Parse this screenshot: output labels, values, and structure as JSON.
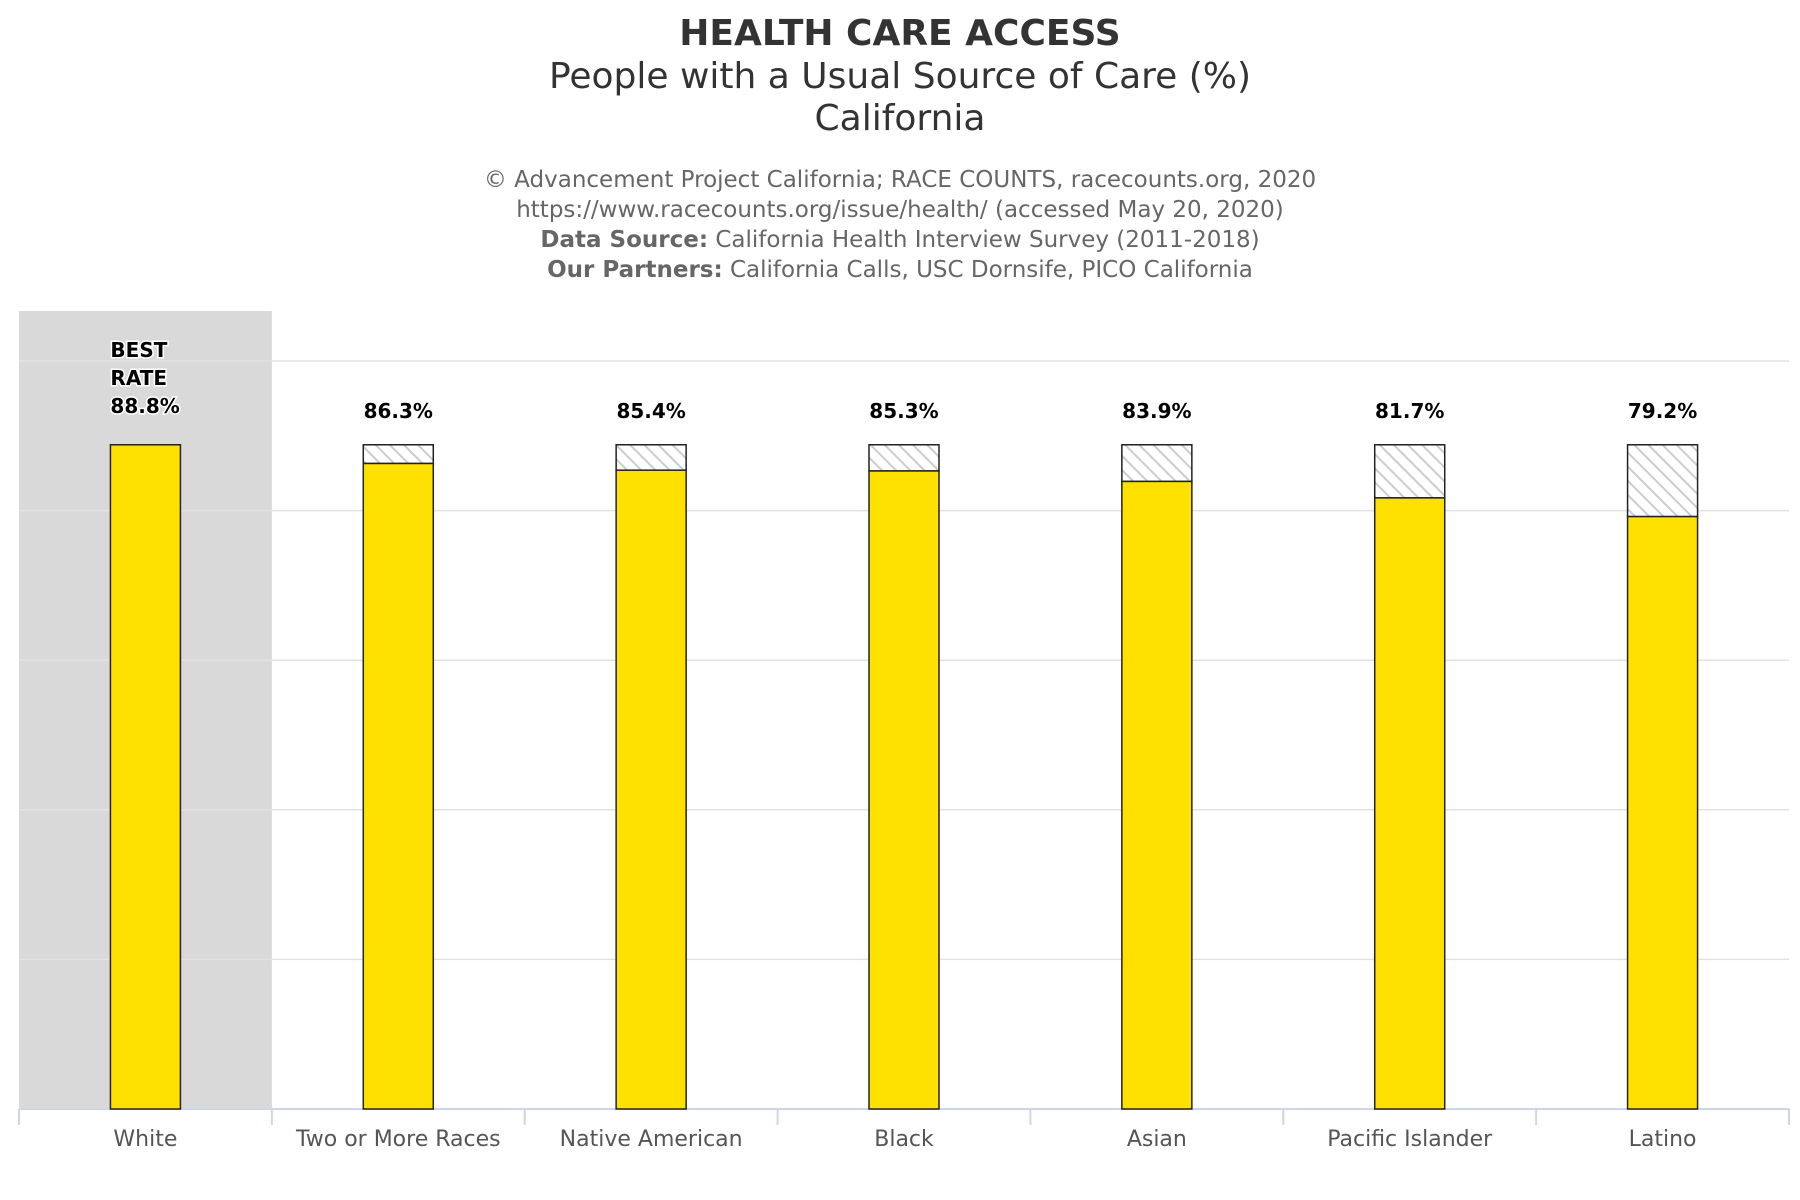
{
  "header": {
    "title": "HEALTH CARE ACCESS",
    "subtitle_line1": "People with a Usual Source of Care (%)",
    "subtitle_line2": "California",
    "credit_line1": "© Advancement Project California; RACE COUNTS, racecounts.org, 2020",
    "credit_line2": "https://www.racecounts.org/issue/health/ (accessed May 20, 2020)",
    "data_source_label": "Data Source:",
    "data_source_value": " California Health Interview Survey (2011-2018)",
    "partners_label": "Our Partners:",
    "partners_value": " California Calls, USC Dornsife, PICO California"
  },
  "colors": {
    "bar_fill": "#FFE100",
    "bar_stroke": "#222222",
    "best_band": "#D9D9D9",
    "gap_hatch": "#CCCCCC",
    "gridline": "#E2E2E2",
    "axis_line": "#CCD6EB"
  },
  "chart_data": {
    "type": "bar",
    "categories": [
      "White",
      "Two or More Races",
      "Native American",
      "Black",
      "Asian",
      "Pacific Islander",
      "Latino"
    ],
    "values": [
      88.8,
      86.3,
      85.4,
      85.3,
      83.9,
      81.7,
      79.2
    ],
    "data_labels": [
      "88.8%",
      "86.3%",
      "85.4%",
      "85.3%",
      "83.9%",
      "81.7%",
      "79.2%"
    ],
    "best_rate_label_line1": "BEST",
    "best_rate_label_line2": "RATE",
    "best_category": "White",
    "best_value": 88.8,
    "gap_to_best_shown": "hatched",
    "ylim": [
      0,
      100
    ],
    "grid": true,
    "y_tick_labels_shown": false,
    "legend": "none"
  }
}
